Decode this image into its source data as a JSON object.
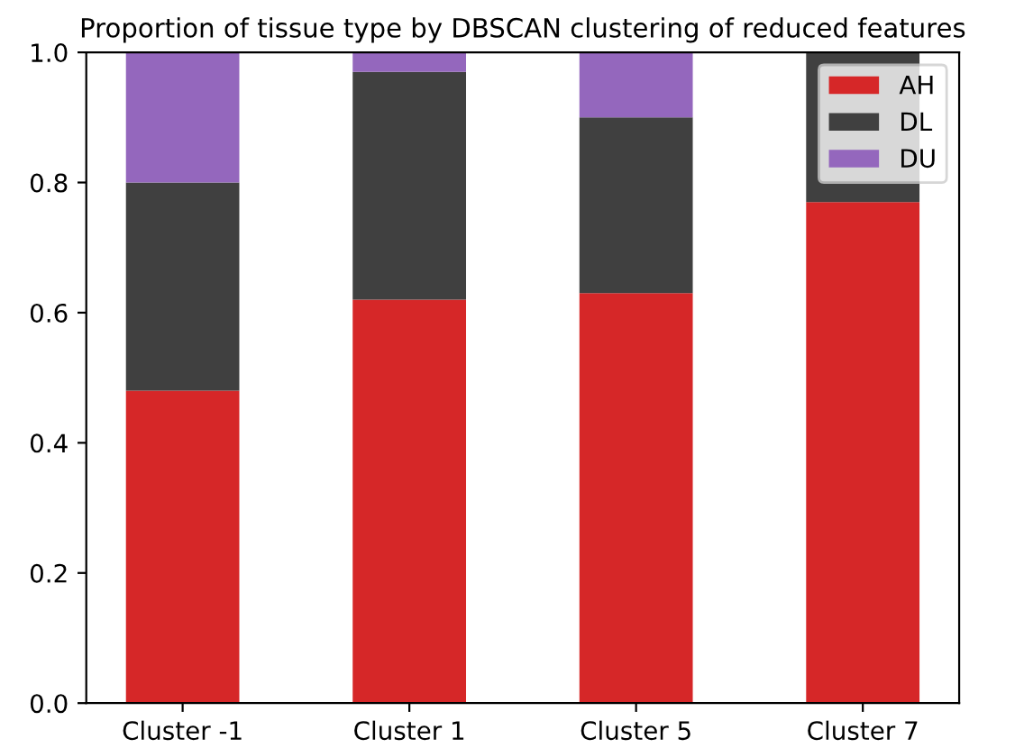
{
  "chart_data": {
    "type": "bar",
    "stacked": true,
    "title": "Proportion of tissue type by DBSCAN clustering of reduced features",
    "categories": [
      "Cluster -1",
      "Cluster 1",
      "Cluster 5",
      "Cluster 7"
    ],
    "series": [
      {
        "name": "AH",
        "color": "#d62728",
        "values": [
          0.48,
          0.62,
          0.63,
          0.77
        ]
      },
      {
        "name": "DL",
        "color": "#404040",
        "values": [
          0.32,
          0.35,
          0.27,
          0.23
        ]
      },
      {
        "name": "DU",
        "color": "#9467bd",
        "values": [
          0.2,
          0.03,
          0.1,
          0
        ]
      }
    ],
    "ylim": [
      0,
      1
    ],
    "yticks": [
      {
        "value": 0,
        "label": "0.0"
      },
      {
        "value": 0.2,
        "label": "0.2"
      },
      {
        "value": 0.4,
        "label": "0.4"
      },
      {
        "value": 0.6,
        "label": "0.6"
      },
      {
        "value": 0.8,
        "label": "0.8"
      },
      {
        "value": 1,
        "label": "1.0"
      }
    ],
    "legend": "upper right",
    "grid": false
  }
}
